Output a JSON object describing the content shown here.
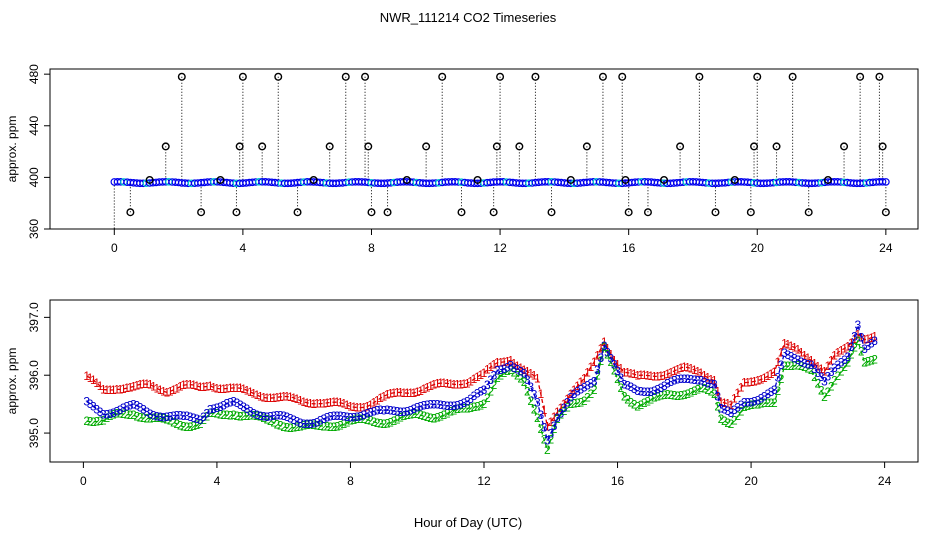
{
  "figure_title": "NWR_111214  CO2 Timeseries",
  "xlabel": "Hour of Day (UTC)",
  "chart_data": [
    {
      "type": "scatter",
      "title": "NWR_111214  CO2 Timeseries",
      "xlabel": "Hour of Day (UTC)",
      "ylabel": "approx. ppm",
      "xlim": [
        -2,
        25
      ],
      "ylim": [
        360,
        484
      ],
      "xticks": [
        0,
        4,
        8,
        12,
        16,
        20,
        24
      ],
      "yticks": [
        360,
        400,
        440,
        480
      ],
      "colors": {
        "baseline_dot": "#0000ee",
        "baseline_cyan": "#00cccc",
        "spike_marker": "#000000",
        "drop_line": "#000000"
      },
      "baseline_ppm": 396,
      "spikes_x": [
        0.5,
        1.1,
        1.6,
        2.1,
        2.7,
        3.3,
        3.8,
        3.9,
        4.0,
        4.6,
        5.1,
        5.7,
        6.2,
        6.7,
        7.2,
        7.8,
        7.9,
        8.0,
        8.5,
        9.1,
        9.7,
        10.2,
        10.8,
        11.3,
        11.8,
        11.9,
        12.0,
        12.6,
        13.1,
        13.6,
        14.2,
        14.7,
        15.2,
        15.8,
        15.9,
        16.0,
        16.6,
        17.1,
        17.6,
        18.2,
        18.7,
        19.3,
        19.8,
        19.9,
        20.0,
        20.6,
        21.1,
        21.6,
        22.2,
        22.7,
        23.2,
        23.8,
        23.9,
        24.0
      ],
      "spikes_y": [
        373,
        398,
        424,
        478,
        373,
        398,
        373,
        424,
        478,
        424,
        478,
        373,
        398,
        424,
        478,
        478,
        424,
        373,
        373,
        398,
        424,
        478,
        373,
        398,
        373,
        424,
        478,
        424,
        478,
        373,
        398,
        424,
        478,
        478,
        398,
        373,
        373,
        398,
        424,
        478,
        373,
        398,
        373,
        424,
        478,
        424,
        478,
        373,
        398,
        424,
        478,
        478,
        424,
        373
      ]
    },
    {
      "type": "line",
      "title": "",
      "xlabel": "Hour of Day (UTC)",
      "ylabel": "approx. ppm",
      "xlim": [
        -1,
        25
      ],
      "ylim": [
        394.5,
        397.3
      ],
      "xticks": [
        0,
        4,
        8,
        12,
        16,
        20,
        24
      ],
      "yticks": [
        395.0,
        396.0,
        397.0
      ],
      "ytick_labels": [
        "395.0",
        "396.0",
        "397.0"
      ],
      "x_start": 0.1,
      "x_step": 0.1,
      "series": [
        {
          "name": "1",
          "marker": "1",
          "color": "#dd0000",
          "knots_x": [
            0.1,
            0.6,
            1.0,
            1.5,
            2.0,
            2.5,
            3.0,
            3.5,
            3.8,
            4.1,
            4.5,
            5.0,
            5.5,
            6.0,
            6.5,
            7.0,
            7.5,
            8.0,
            8.5,
            9.0,
            9.5,
            10.0,
            10.5,
            11.0,
            11.5,
            12.0,
            12.4,
            12.8,
            13.2,
            13.6,
            13.9,
            14.2,
            14.6,
            15.0,
            15.3,
            15.6,
            15.9,
            16.2,
            16.6,
            17.0,
            17.5,
            18.0,
            18.5,
            18.9,
            19.1,
            19.4,
            19.8,
            20.2,
            20.7,
            21.0,
            21.4,
            21.8,
            22.2,
            22.5,
            22.9,
            23.2,
            23.4,
            23.7
          ],
          "knots_y": [
            395.95,
            395.75,
            395.8,
            395.78,
            395.82,
            395.75,
            395.8,
            395.78,
            395.85,
            395.8,
            395.75,
            395.7,
            395.65,
            395.6,
            395.55,
            395.55,
            395.5,
            395.45,
            395.5,
            395.6,
            395.7,
            395.75,
            395.8,
            395.85,
            395.9,
            396.0,
            396.2,
            396.3,
            396.1,
            395.9,
            395.1,
            395.4,
            395.7,
            395.9,
            396.2,
            396.6,
            396.3,
            396.05,
            395.95,
            396.0,
            396.05,
            396.1,
            396.05,
            395.95,
            395.55,
            395.45,
            395.85,
            395.95,
            396.05,
            396.5,
            396.45,
            396.3,
            396.05,
            396.3,
            396.5,
            396.75,
            396.65,
            396.65
          ]
        },
        {
          "name": "2",
          "marker": "2",
          "color": "#00aa00",
          "knots_x": [
            0.1,
            0.6,
            1.0,
            1.5,
            2.0,
            2.5,
            3.0,
            3.5,
            3.8,
            4.1,
            4.5,
            5.0,
            5.5,
            6.0,
            6.5,
            7.0,
            7.5,
            8.0,
            8.5,
            9.0,
            9.5,
            10.0,
            10.5,
            11.0,
            11.5,
            12.0,
            12.4,
            12.8,
            13.2,
            13.6,
            13.9,
            14.2,
            14.6,
            15.0,
            15.3,
            15.6,
            15.9,
            16.2,
            16.6,
            17.0,
            17.5,
            18.0,
            18.5,
            18.9,
            19.1,
            19.4,
            19.8,
            20.2,
            20.7,
            21.0,
            21.4,
            21.8,
            22.2,
            22.5,
            22.9,
            23.2,
            23.4,
            23.7
          ],
          "knots_y": [
            395.25,
            395.2,
            395.3,
            395.35,
            395.25,
            395.2,
            395.15,
            395.15,
            395.3,
            395.3,
            395.35,
            395.3,
            395.2,
            395.15,
            395.1,
            395.1,
            395.15,
            395.2,
            395.2,
            395.2,
            395.25,
            395.3,
            395.3,
            395.35,
            395.4,
            395.55,
            395.95,
            396.05,
            395.9,
            395.3,
            394.7,
            395.2,
            395.5,
            395.6,
            395.75,
            396.45,
            396.05,
            395.65,
            395.5,
            395.55,
            395.65,
            395.7,
            395.75,
            395.65,
            395.25,
            395.2,
            395.45,
            395.45,
            395.55,
            396.2,
            396.15,
            396.05,
            395.65,
            395.95,
            396.2,
            396.55,
            396.2,
            396.3
          ]
        },
        {
          "name": "3",
          "marker": "3",
          "color": "#0000cc",
          "knots_x": [
            0.1,
            0.6,
            1.0,
            1.5,
            2.0,
            2.5,
            3.0,
            3.5,
            3.8,
            4.1,
            4.5,
            5.0,
            5.5,
            6.0,
            6.5,
            7.0,
            7.5,
            8.0,
            8.5,
            9.0,
            9.5,
            10.0,
            10.5,
            11.0,
            11.5,
            12.0,
            12.4,
            12.8,
            13.2,
            13.6,
            13.9,
            14.2,
            14.6,
            15.0,
            15.3,
            15.6,
            15.9,
            16.2,
            16.6,
            17.0,
            17.5,
            18.0,
            18.5,
            18.9,
            19.1,
            19.4,
            19.8,
            20.2,
            20.7,
            21.0,
            21.4,
            21.8,
            22.2,
            22.5,
            22.9,
            23.2,
            23.4,
            23.7
          ],
          "knots_y": [
            395.5,
            395.35,
            395.4,
            395.45,
            395.35,
            395.3,
            395.25,
            395.25,
            395.45,
            395.45,
            395.5,
            395.4,
            395.3,
            395.25,
            395.2,
            395.2,
            395.25,
            395.3,
            395.35,
            395.35,
            395.4,
            395.45,
            395.45,
            395.5,
            395.55,
            395.7,
            396.1,
            396.2,
            396.0,
            395.5,
            394.9,
            395.3,
            395.6,
            395.75,
            395.9,
            396.55,
            396.2,
            395.8,
            395.7,
            395.75,
            395.85,
            395.9,
            395.95,
            395.85,
            395.4,
            395.3,
            395.55,
            395.6,
            395.7,
            396.35,
            396.3,
            396.2,
            395.85,
            396.1,
            396.35,
            396.9,
            396.45,
            396.55
          ]
        }
      ]
    }
  ]
}
